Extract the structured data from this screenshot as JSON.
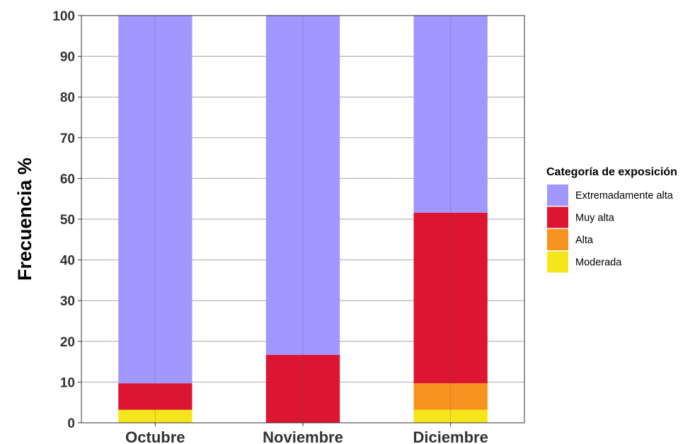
{
  "chart_data": {
    "type": "bar",
    "stacked": true,
    "categories": [
      "Octubre",
      "Noviembre",
      "Diciembre"
    ],
    "series": [
      {
        "name": "Moderada",
        "color": "#f5e51b",
        "values": [
          3.2,
          0,
          3.2
        ]
      },
      {
        "name": "Alta",
        "color": "#f8921e",
        "values": [
          0,
          0,
          6.5
        ]
      },
      {
        "name": "Muy alta",
        "color": "#dc1631",
        "values": [
          6.5,
          16.7,
          41.9
        ]
      },
      {
        "name": "Extremadamente alta",
        "color": "#a296ff",
        "values": [
          90.3,
          83.3,
          48.4
        ]
      }
    ],
    "title": "",
    "xlabel": "",
    "ylabel": "Frecuencia %",
    "ylim": [
      0,
      100
    ],
    "yticks": [
      0,
      10,
      20,
      30,
      40,
      50,
      60,
      70,
      80,
      90,
      100
    ],
    "grid": true,
    "legend": {
      "title": "Categoría de exposición",
      "position": "right",
      "order": [
        "Extremadamente alta",
        "Muy alta",
        "Alta",
        "Moderada"
      ]
    }
  }
}
